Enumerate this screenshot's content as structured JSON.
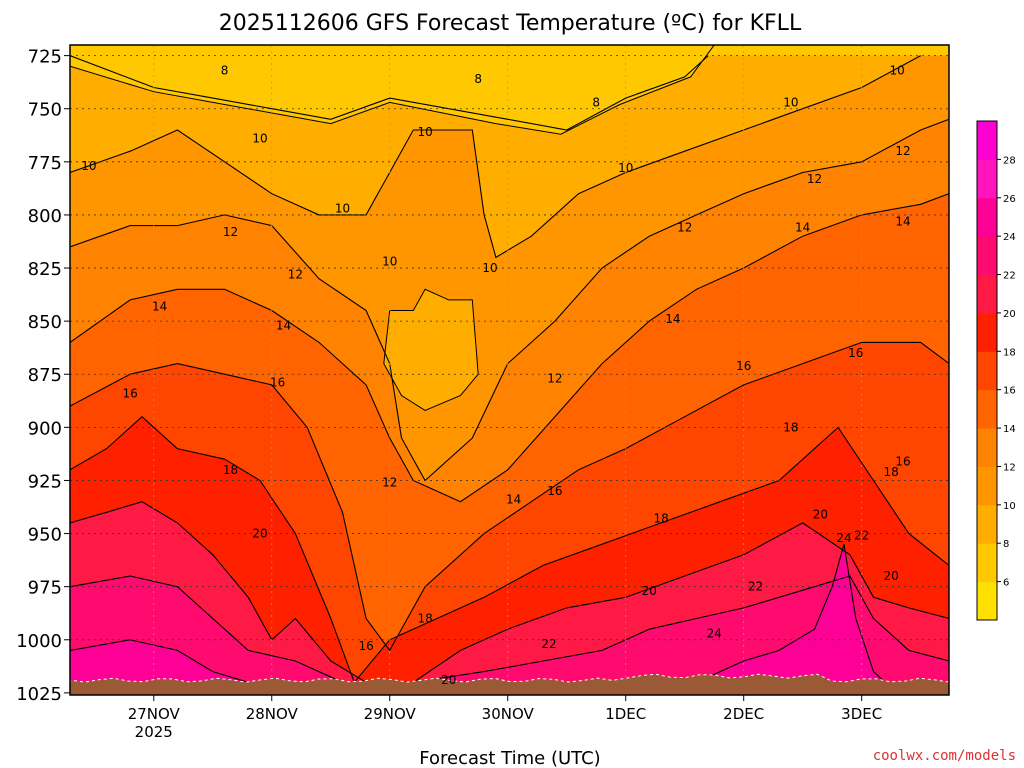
{
  "chart_data": {
    "type": "heatmap",
    "title": "2025112606 GFS Forecast Temperature (ºC) for KFLL",
    "xlabel": "Forecast Time (UTC)",
    "ylabel": "",
    "credit": "coolwx.com/models",
    "x_ticks": [
      {
        "label": "27NOV",
        "sub": "2025",
        "day": 1
      },
      {
        "label": "28NOV",
        "sub": "",
        "day": 2
      },
      {
        "label": "29NOV",
        "sub": "",
        "day": 3
      },
      {
        "label": "30NOV",
        "sub": "",
        "day": 4
      },
      {
        "label": "1DEC",
        "sub": "",
        "day": 5
      },
      {
        "label": "2DEC",
        "sub": "",
        "day": 6
      },
      {
        "label": "3DEC",
        "sub": "",
        "day": 7
      }
    ],
    "xlim": [
      0.29,
      7.74
    ],
    "y_ticks": [
      "725",
      "750",
      "775",
      "800",
      "825",
      "850",
      "875",
      "900",
      "925",
      "950",
      "975",
      "1000",
      "1025"
    ],
    "ylim": [
      720,
      1026
    ],
    "ground_level": 1019,
    "colorbar": {
      "levels": [
        6,
        8,
        10,
        12,
        14,
        16,
        18,
        20,
        22,
        24,
        26,
        28
      ],
      "colors": [
        "#ffe000",
        "#ffc800",
        "#ffae00",
        "#ff9600",
        "#ff8200",
        "#ff6400",
        "#ff4600",
        "#ff2000",
        "#ff1a46",
        "#ff0a6e",
        "#ff0096",
        "#ff14be",
        "#ff00d2"
      ]
    },
    "series": [
      {
        "name": "8",
        "values": [
          [
            0.29,
            725
          ],
          [
            1.0,
            740
          ],
          [
            1.5,
            745
          ],
          [
            2.0,
            750
          ],
          [
            2.5,
            755
          ],
          [
            3.0,
            745
          ],
          [
            3.5,
            750
          ],
          [
            4.0,
            755
          ],
          [
            4.5,
            760
          ],
          [
            5.0,
            745
          ],
          [
            5.5,
            735
          ],
          [
            5.7,
            725
          ]
        ]
      },
      {
        "name": "10",
        "values": [
          [
            0.29,
            780
          ],
          [
            0.8,
            770
          ],
          [
            1.2,
            760
          ],
          [
            1.6,
            775
          ],
          [
            2.0,
            790
          ],
          [
            2.4,
            800
          ],
          [
            2.8,
            800
          ],
          [
            3.2,
            760
          ],
          [
            3.7,
            760
          ],
          [
            3.8,
            800
          ],
          [
            3.9,
            820
          ],
          [
            4.2,
            810
          ],
          [
            4.6,
            790
          ],
          [
            5.0,
            780
          ],
          [
            5.5,
            770
          ],
          [
            6.0,
            760
          ],
          [
            6.5,
            750
          ],
          [
            7.0,
            740
          ],
          [
            7.5,
            725
          ]
        ]
      },
      {
        "name": "12",
        "values": [
          [
            0.29,
            815
          ],
          [
            0.8,
            805
          ],
          [
            1.2,
            805
          ],
          [
            1.6,
            800
          ],
          [
            2.0,
            805
          ],
          [
            2.4,
            830
          ],
          [
            2.8,
            845
          ],
          [
            3.0,
            870
          ],
          [
            3.1,
            905
          ],
          [
            3.3,
            925
          ],
          [
            3.7,
            905
          ],
          [
            4.0,
            870
          ],
          [
            4.4,
            850
          ],
          [
            4.8,
            825
          ],
          [
            5.2,
            810
          ],
          [
            5.6,
            800
          ],
          [
            6.0,
            790
          ],
          [
            6.5,
            780
          ],
          [
            7.0,
            775
          ],
          [
            7.5,
            760
          ],
          [
            7.74,
            755
          ]
        ]
      },
      {
        "name": "14",
        "values": [
          [
            0.29,
            860
          ],
          [
            0.8,
            840
          ],
          [
            1.2,
            835
          ],
          [
            1.6,
            835
          ],
          [
            2.0,
            845
          ],
          [
            2.4,
            860
          ],
          [
            2.8,
            880
          ],
          [
            3.0,
            905
          ],
          [
            3.2,
            925
          ],
          [
            3.6,
            935
          ],
          [
            4.0,
            920
          ],
          [
            4.4,
            895
          ],
          [
            4.8,
            870
          ],
          [
            5.2,
            850
          ],
          [
            5.6,
            835
          ],
          [
            6.0,
            825
          ],
          [
            6.5,
            810
          ],
          [
            7.0,
            800
          ],
          [
            7.5,
            795
          ],
          [
            7.74,
            790
          ]
        ]
      },
      {
        "name": "16",
        "values": [
          [
            0.29,
            890
          ],
          [
            0.8,
            875
          ],
          [
            1.2,
            870
          ],
          [
            1.6,
            875
          ],
          [
            2.0,
            880
          ],
          [
            2.3,
            900
          ],
          [
            2.6,
            940
          ],
          [
            2.8,
            990
          ],
          [
            3.0,
            1005
          ],
          [
            3.3,
            975
          ],
          [
            3.8,
            950
          ],
          [
            4.2,
            935
          ],
          [
            4.6,
            920
          ],
          [
            5.0,
            910
          ],
          [
            5.5,
            895
          ],
          [
            6.0,
            880
          ],
          [
            6.5,
            870
          ],
          [
            7.0,
            860
          ],
          [
            7.5,
            860
          ],
          [
            7.74,
            870
          ]
        ]
      },
      {
        "name": "18",
        "values": [
          [
            0.29,
            920
          ],
          [
            0.6,
            910
          ],
          [
            0.9,
            895
          ],
          [
            1.2,
            910
          ],
          [
            1.6,
            915
          ],
          [
            1.9,
            925
          ],
          [
            2.2,
            950
          ],
          [
            2.5,
            990
          ],
          [
            2.7,
            1020
          ],
          [
            3.0,
            1000
          ],
          [
            3.4,
            990
          ],
          [
            3.8,
            980
          ],
          [
            4.3,
            965
          ],
          [
            4.8,
            955
          ],
          [
            5.3,
            945
          ],
          [
            5.8,
            935
          ],
          [
            6.3,
            925
          ],
          [
            6.6,
            910
          ],
          [
            6.8,
            900
          ],
          [
            7.1,
            925
          ],
          [
            7.4,
            950
          ],
          [
            7.74,
            965
          ]
        ]
      },
      {
        "name": "20",
        "values": [
          [
            0.29,
            945
          ],
          [
            0.6,
            940
          ],
          [
            0.9,
            935
          ],
          [
            1.2,
            945
          ],
          [
            1.5,
            960
          ],
          [
            1.8,
            980
          ],
          [
            2.0,
            1000
          ],
          [
            2.2,
            990
          ],
          [
            2.5,
            1010
          ],
          [
            2.8,
            1020
          ],
          [
            3.2,
            1020
          ],
          [
            3.6,
            1005
          ],
          [
            4.0,
            995
          ],
          [
            4.5,
            985
          ],
          [
            5.0,
            980
          ],
          [
            5.5,
            970
          ],
          [
            6.0,
            960
          ],
          [
            6.5,
            945
          ],
          [
            6.9,
            960
          ],
          [
            7.1,
            980
          ],
          [
            7.4,
            985
          ],
          [
            7.74,
            990
          ]
        ]
      },
      {
        "name": "22",
        "values": [
          [
            0.29,
            975
          ],
          [
            0.8,
            970
          ],
          [
            1.2,
            975
          ],
          [
            1.5,
            990
          ],
          [
            1.8,
            1005
          ],
          [
            2.2,
            1010
          ],
          [
            2.6,
            1020
          ],
          [
            3.2,
            1020
          ],
          [
            3.8,
            1015
          ],
          [
            4.3,
            1010
          ],
          [
            4.8,
            1005
          ],
          [
            5.2,
            995
          ],
          [
            5.6,
            990
          ],
          [
            6.0,
            985
          ],
          [
            6.3,
            980
          ],
          [
            6.6,
            975
          ],
          [
            6.9,
            970
          ],
          [
            7.1,
            990
          ],
          [
            7.4,
            1005
          ],
          [
            7.74,
            1010
          ]
        ]
      },
      {
        "name": "24",
        "values": [
          [
            0.29,
            1005
          ],
          [
            0.8,
            1000
          ],
          [
            1.2,
            1005
          ],
          [
            1.5,
            1015
          ],
          [
            1.8,
            1020
          ],
          [
            5.6,
            1020
          ],
          [
            6.0,
            1010
          ],
          [
            6.3,
            1005
          ],
          [
            6.6,
            995
          ],
          [
            6.75,
            975
          ],
          [
            6.85,
            955
          ],
          [
            6.95,
            990
          ],
          [
            7.1,
            1015
          ],
          [
            7.2,
            1020
          ]
        ]
      }
    ],
    "regions": [
      {
        "level": 6,
        "values": [
          [
            0.29,
            720
          ],
          [
            5.75,
            720
          ],
          [
            5.55,
            735
          ],
          [
            4.95,
            748
          ],
          [
            4.45,
            762
          ],
          [
            3.9,
            757
          ],
          [
            3.45,
            752
          ],
          [
            3.0,
            747
          ],
          [
            2.5,
            757
          ],
          [
            2.0,
            752
          ],
          [
            1.5,
            747
          ],
          [
            1.0,
            742
          ],
          [
            0.29,
            730
          ]
        ]
      },
      {
        "level": 8,
        "values": [
          [
            3.0,
            845
          ],
          [
            3.2,
            845
          ],
          [
            3.3,
            835
          ],
          [
            3.5,
            840
          ],
          [
            3.7,
            840
          ],
          [
            3.75,
            875
          ],
          [
            3.6,
            885
          ],
          [
            3.3,
            892
          ],
          [
            3.1,
            885
          ],
          [
            2.95,
            870
          ]
        ]
      }
    ],
    "labels": [
      {
        "text": "8",
        "day": 1.6,
        "p": 732
      },
      {
        "text": "8",
        "day": 3.75,
        "p": 736
      },
      {
        "text": "8",
        "day": 4.75,
        "p": 747
      },
      {
        "text": "10",
        "day": 0.45,
        "p": 777
      },
      {
        "text": "10",
        "day": 1.9,
        "p": 764
      },
      {
        "text": "10",
        "day": 2.6,
        "p": 797
      },
      {
        "text": "10",
        "day": 3.3,
        "p": 761
      },
      {
        "text": "10",
        "day": 3.0,
        "p": 822
      },
      {
        "text": "10",
        "day": 3.85,
        "p": 825
      },
      {
        "text": "10",
        "day": 5.0,
        "p": 778
      },
      {
        "text": "10",
        "day": 6.4,
        "p": 747
      },
      {
        "text": "10",
        "day": 7.3,
        "p": 732
      },
      {
        "text": "12",
        "day": 1.65,
        "p": 808
      },
      {
        "text": "12",
        "day": 2.2,
        "p": 828
      },
      {
        "text": "12",
        "day": 3.0,
        "p": 926
      },
      {
        "text": "12",
        "day": 4.4,
        "p": 877
      },
      {
        "text": "12",
        "day": 5.5,
        "p": 806
      },
      {
        "text": "12",
        "day": 6.6,
        "p": 783
      },
      {
        "text": "12",
        "day": 7.35,
        "p": 770
      },
      {
        "text": "14",
        "day": 1.05,
        "p": 843
      },
      {
        "text": "14",
        "day": 2.1,
        "p": 852
      },
      {
        "text": "14",
        "day": 4.05,
        "p": 934
      },
      {
        "text": "14",
        "day": 5.4,
        "p": 849
      },
      {
        "text": "14",
        "day": 6.5,
        "p": 806
      },
      {
        "text": "14",
        "day": 7.35,
        "p": 803
      },
      {
        "text": "16",
        "day": 0.8,
        "p": 884
      },
      {
        "text": "16",
        "day": 2.05,
        "p": 879
      },
      {
        "text": "16",
        "day": 2.8,
        "p": 1003
      },
      {
        "text": "16",
        "day": 4.4,
        "p": 930
      },
      {
        "text": "16",
        "day": 6.0,
        "p": 871
      },
      {
        "text": "16",
        "day": 6.95,
        "p": 865
      },
      {
        "text": "16",
        "day": 7.35,
        "p": 916
      },
      {
        "text": "18",
        "day": 1.65,
        "p": 920
      },
      {
        "text": "18",
        "day": 3.3,
        "p": 990
      },
      {
        "text": "18",
        "day": 5.3,
        "p": 943
      },
      {
        "text": "18",
        "day": 6.4,
        "p": 900
      },
      {
        "text": "18",
        "day": 7.25,
        "p": 921
      },
      {
        "text": "20",
        "day": 1.9,
        "p": 950
      },
      {
        "text": "20",
        "day": 3.5,
        "p": 1019
      },
      {
        "text": "20",
        "day": 5.2,
        "p": 977
      },
      {
        "text": "20",
        "day": 6.65,
        "p": 941
      },
      {
        "text": "20",
        "day": 7.25,
        "p": 970
      },
      {
        "text": "22",
        "day": 4.35,
        "p": 1002
      },
      {
        "text": "22",
        "day": 6.1,
        "p": 975
      },
      {
        "text": "22",
        "day": 7.0,
        "p": 951
      },
      {
        "text": "24",
        "day": 5.75,
        "p": 997
      },
      {
        "text": "24",
        "day": 6.85,
        "p": 952
      }
    ]
  }
}
